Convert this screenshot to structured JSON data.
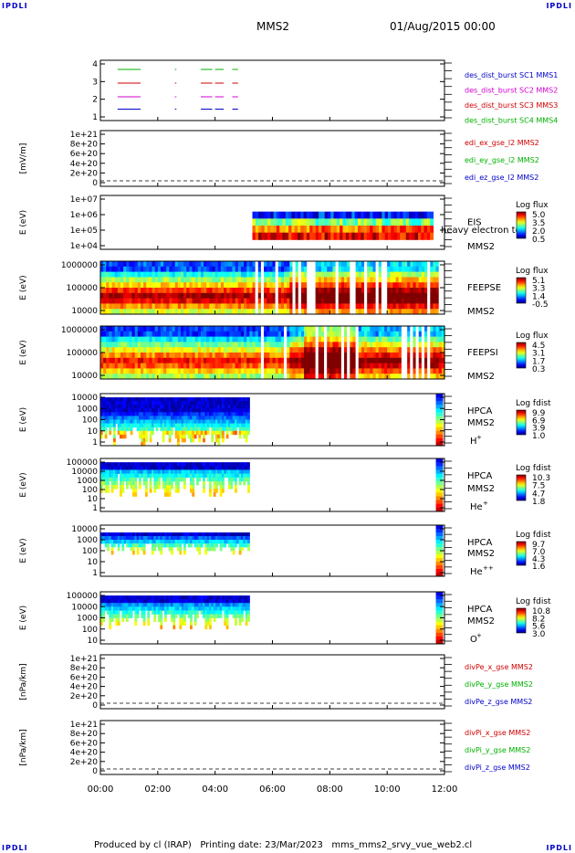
{
  "corner_label": "IPDLI",
  "header": {
    "spacecraft": "MMS2",
    "datetime": "01/Aug/2015 00:00"
  },
  "footer": "Produced by cl (IRAP)   Printing date: 23/Mar/2023   mms_mms2_srvy_vue_web2.cl",
  "time_axis": [
    "00:00",
    "02:00",
    "04:00",
    "06:00",
    "08:00",
    "10:00",
    "12:00"
  ],
  "colors": {
    "mms1": "#0000c8",
    "mms2": "#d000d0",
    "mms3": "#d00000",
    "mms4": "#00b000",
    "red": "#d00000",
    "green": "#00b000",
    "blue": "#0000c8"
  },
  "panels": [
    {
      "id": "burst",
      "ylabel": "",
      "ticks": [
        "4",
        "3",
        "2",
        "1"
      ],
      "legend": [
        {
          "text": "des_dist_burst SC1 MMS1",
          "color": "#0000c8"
        },
        {
          "text": "des_dist_burst SC2 MMS2",
          "color": "#d000d0"
        },
        {
          "text": "des_dist_burst SC3 MMS3",
          "color": "#d00000"
        },
        {
          "text": "des_dist_burst SC4 MMS4",
          "color": "#00b000"
        }
      ]
    },
    {
      "id": "edi",
      "ylabel": "[mV/m]",
      "ticks": [
        "1e+21",
        "8e+20",
        "6e+20",
        "4e+20",
        "2e+20",
        "0"
      ],
      "legend": [
        {
          "text": "edi_ex_gse_l2 MMS2",
          "color": "#d00000"
        },
        {
          "text": "edi_ey_gse_l2 MMS2",
          "color": "#00b000"
        },
        {
          "text": "edi_ez_gse_l2 MMS2",
          "color": "#0000c8"
        }
      ]
    },
    {
      "id": "eis",
      "ylabel": "E (eV)",
      "ticks": [
        "1e+07",
        "1e+06",
        "1e+05",
        "1e+04"
      ],
      "instrument": "EIS",
      "overlay": "heavy electron to",
      "sc": "MMS2",
      "cbar_title": "Log flux",
      "cbar_ticks": [
        "5.0",
        "3.5",
        "2.0",
        "0.5"
      ]
    },
    {
      "id": "feepse",
      "ylabel": "E (eV)",
      "ticks": [
        "1000000",
        "100000",
        "10000"
      ],
      "instrument": "FEEPSE",
      "sc": "MMS2",
      "cbar_title": "Log flux",
      "cbar_ticks": [
        "5.1",
        "3.3",
        "1.4",
        "-0.5"
      ]
    },
    {
      "id": "feepsi",
      "ylabel": "E (eV)",
      "ticks": [
        "1000000",
        "100000",
        "10000"
      ],
      "instrument": "FEEPSI",
      "sc": "MMS2",
      "cbar_title": "Log flux",
      "cbar_ticks": [
        "4.5",
        "3.1",
        "1.7",
        "0.3"
      ]
    },
    {
      "id": "hpca_h",
      "ylabel": "E (eV)",
      "ticks": [
        "10000",
        "1000",
        "100",
        "10",
        "1"
      ],
      "instrument": "HPCA",
      "sc": "MMS2",
      "species": "H",
      "charge": "+",
      "cbar_title": "Log fdist",
      "cbar_ticks": [
        "9.9",
        "6.9",
        "3.9",
        "1.0"
      ]
    },
    {
      "id": "hpca_he",
      "ylabel": "E (eV)",
      "ticks": [
        "100000",
        "10000",
        "1000",
        "100",
        "10",
        "1"
      ],
      "instrument": "HPCA",
      "sc": "MMS2",
      "species": "He",
      "charge": "+",
      "cbar_title": "Log fdist",
      "cbar_ticks": [
        "10.3",
        "7.5",
        "4.7",
        "1.8"
      ]
    },
    {
      "id": "hpca_hepp",
      "ylabel": "E (eV)",
      "ticks": [
        "10000",
        "1000",
        "100",
        "10",
        "1"
      ],
      "instrument": "HPCA",
      "sc": "MMS2",
      "species": "He",
      "charge": "++",
      "cbar_title": "Log fdist",
      "cbar_ticks": [
        "9.7",
        "7.0",
        "4.3",
        "1.6"
      ]
    },
    {
      "id": "hpca_o",
      "ylabel": "E (eV)",
      "ticks": [
        "100000",
        "10000",
        "1000",
        "100",
        "10"
      ],
      "instrument": "HPCA",
      "sc": "MMS2",
      "species": "O",
      "charge": "+",
      "cbar_title": "Log fdist",
      "cbar_ticks": [
        "10.8",
        "8.2",
        "5.6",
        "3.0"
      ]
    },
    {
      "id": "divpe",
      "ylabel": "[nPa/km]",
      "ticks": [
        "1e+21",
        "8e+20",
        "6e+20",
        "4e+20",
        "2e+20",
        "0"
      ],
      "legend": [
        {
          "text": "divPe_x_gse MMS2",
          "color": "#d00000"
        },
        {
          "text": "divPe_y_gse MMS2",
          "color": "#00b000"
        },
        {
          "text": "divPe_z_gse MMS2",
          "color": "#0000c8"
        }
      ]
    },
    {
      "id": "divpi",
      "ylabel": "[nPa/km]",
      "ticks": [
        "1e+21",
        "8e+20",
        "6e+20",
        "4e+20",
        "2e+20",
        "0"
      ],
      "legend": [
        {
          "text": "divPi_x_gse MMS2",
          "color": "#d00000"
        },
        {
          "text": "divPi_y_gse MMS2",
          "color": "#00b000"
        },
        {
          "text": "divPi_z_gse MMS2",
          "color": "#0000c8"
        }
      ]
    }
  ],
  "chart_data": {
    "type": "heatmap",
    "x_range_hours": [
      0,
      12
    ],
    "segments": [
      {
        "panel": "burst",
        "series": [
          {
            "name": "MMS1",
            "y": 1,
            "x": [
              [
                0.6,
                1.4
              ],
              [
                2.6,
                2.65
              ],
              [
                3.5,
                3.9
              ],
              [
                4.0,
                4.3
              ],
              [
                4.6,
                4.8
              ]
            ]
          },
          {
            "name": "MMS2",
            "y": 2,
            "x": [
              [
                0.6,
                1.4
              ],
              [
                2.6,
                2.65
              ],
              [
                3.5,
                3.9
              ],
              [
                4.0,
                4.3
              ],
              [
                4.6,
                4.8
              ]
            ]
          },
          {
            "name": "MMS3",
            "y": 3,
            "x": [
              [
                0.6,
                1.4
              ],
              [
                2.6,
                2.65
              ],
              [
                3.5,
                3.9
              ],
              [
                4.0,
                4.3
              ],
              [
                4.6,
                4.8
              ]
            ]
          },
          {
            "name": "MMS4",
            "y": 4,
            "x": [
              [
                0.6,
                1.4
              ],
              [
                2.6,
                2.65
              ],
              [
                3.5,
                3.9
              ],
              [
                4.0,
                4.3
              ],
              [
                4.6,
                4.8
              ]
            ]
          }
        ]
      },
      {
        "panel": "eis",
        "coverage_hours": [
          5.3,
          11.6
        ]
      },
      {
        "panel": "feepse",
        "coverage_hours": [
          0,
          12
        ]
      },
      {
        "panel": "feepsi",
        "coverage_hours": [
          0,
          12
        ]
      },
      {
        "panel": "hpca_h",
        "coverage_hours": [
          [
            0,
            5.2
          ],
          [
            11.7,
            12
          ]
        ]
      },
      {
        "panel": "hpca_he",
        "coverage_hours": [
          [
            0,
            5.2
          ],
          [
            11.7,
            12
          ]
        ]
      },
      {
        "panel": "hpca_hepp",
        "coverage_hours": [
          [
            0,
            5.2
          ],
          [
            11.7,
            12
          ]
        ]
      },
      {
        "panel": "hpca_o",
        "coverage_hours": [
          [
            0,
            5.2
          ],
          [
            11.7,
            12
          ]
        ]
      }
    ]
  }
}
